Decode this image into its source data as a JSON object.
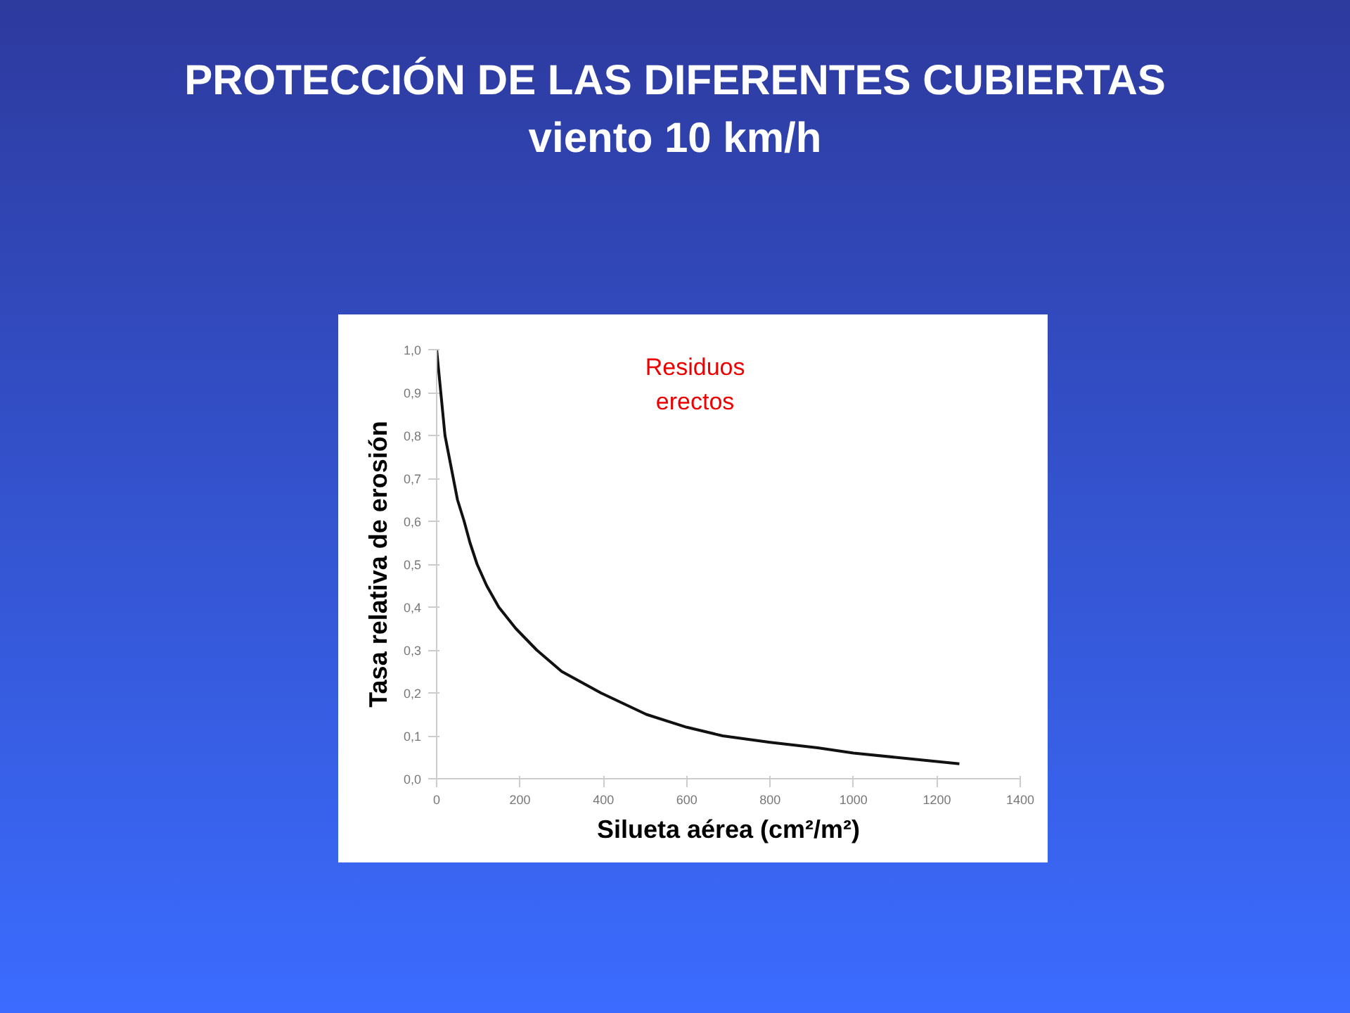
{
  "chart_data": {
    "type": "line",
    "title": "PROTECCIÓN DE LAS DIFERENTES CUBIERTAS",
    "subtitle": "viento 10 km/h",
    "xlabel": "Silueta aérea (cm²/m²)",
    "ylabel": "Tasa relativa de erosión",
    "annotations": [
      "Residuos\nerectos"
    ],
    "x": [
      0,
      5,
      10,
      20,
      30,
      40,
      50,
      66,
      80,
      97,
      120,
      149,
      190,
      240,
      300,
      394,
      503,
      600,
      686,
      800,
      914,
      1000,
      1100,
      1254
    ],
    "series": [
      {
        "color": "#111111",
        "values": [
          1.0,
          0.95,
          0.9,
          0.8,
          0.75,
          0.7,
          0.65,
          0.6,
          0.55,
          0.5,
          0.45,
          0.4,
          0.35,
          0.3,
          0.25,
          0.2,
          0.15,
          0.12,
          0.1,
          0.085,
          0.072,
          0.06,
          0.05,
          0.035
        ]
      }
    ],
    "xlim": [
      0,
      1400
    ],
    "ylim": [
      0,
      1.0
    ],
    "xticks": [
      0,
      200,
      400,
      600,
      800,
      1000,
      1200,
      1400
    ],
    "yticks": [
      {
        "value": 0,
        "label": "0,0"
      },
      {
        "value": 0.1,
        "label": "0,1"
      },
      {
        "value": 0.2,
        "label": "0,2"
      },
      {
        "value": 0.3,
        "label": "0,3"
      },
      {
        "value": 0.4,
        "label": "0,4"
      },
      {
        "value": 0.5,
        "label": "0,5"
      },
      {
        "value": 0.6,
        "label": "0,6"
      },
      {
        "value": 0.7,
        "label": "0,7"
      },
      {
        "value": 0.8,
        "label": "0,8"
      },
      {
        "value": 0.9,
        "label": "0,9"
      },
      {
        "value": 1.0,
        "label": "1,0"
      }
    ],
    "grid": false,
    "marker": "none",
    "line_style": "solid"
  }
}
